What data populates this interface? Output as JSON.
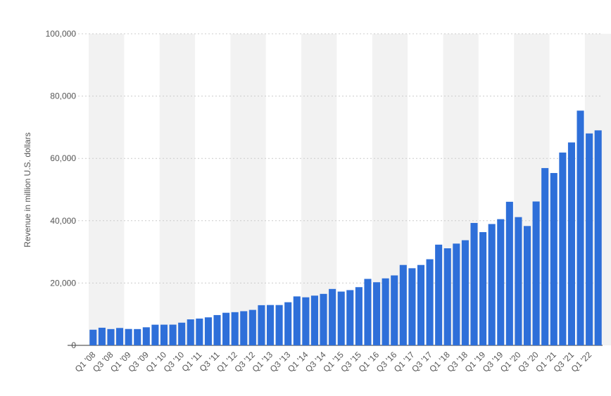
{
  "chart_data": {
    "type": "bar",
    "title": "",
    "xlabel": "",
    "ylabel": "Revenue in million U.S. dollars",
    "ylim": [
      0,
      100000
    ],
    "yticks": [
      0,
      20000,
      40000,
      60000,
      80000,
      100000
    ],
    "ytick_labels": [
      "0",
      "20,000",
      "40,000",
      "60,000",
      "80,000",
      "100,000"
    ],
    "grid": "horizontal dotted",
    "bar_color": "#2e6fd9",
    "band_color": "#f2f2f2",
    "categories": [
      "Q1 '08",
      "Q2 '08",
      "Q3 '08",
      "Q4 '08",
      "Q1 '09",
      "Q2 '09",
      "Q3 '09",
      "Q4 '09",
      "Q1 '10",
      "Q2 '10",
      "Q3 '10",
      "Q4 '10",
      "Q1 '11",
      "Q2 '11",
      "Q3 '11",
      "Q4 '11",
      "Q1 '12",
      "Q2 '12",
      "Q3 '12",
      "Q4 '12",
      "Q1 '13",
      "Q2 '13",
      "Q3 '13",
      "Q4 '13",
      "Q1 '14",
      "Q2 '14",
      "Q3 '14",
      "Q4 '14",
      "Q1 '15",
      "Q2 '15",
      "Q3 '15",
      "Q4 '15",
      "Q1 '16",
      "Q2 '16",
      "Q3 '16",
      "Q4 '16",
      "Q1 '17",
      "Q2 '17",
      "Q3 '17",
      "Q4 '17",
      "Q1 '18",
      "Q2 '18",
      "Q3 '18",
      "Q4 '18",
      "Q1 '19",
      "Q2 '19",
      "Q3 '19",
      "Q4 '19",
      "Q1 '20",
      "Q2 '20",
      "Q3 '20",
      "Q4 '20",
      "Q1 '21",
      "Q2 '21",
      "Q3 '21",
      "Q4 '21",
      "Q1 '22",
      "Q2 '22"
    ],
    "x_tick_labels": [
      "Q1 '08",
      "",
      "Q3 '08",
      "",
      "Q1 '09",
      "",
      "Q3 '09",
      "",
      "Q1 '10",
      "",
      "Q3 '10",
      "",
      "Q1 '11",
      "",
      "Q3 '11",
      "",
      "Q1 '12",
      "",
      "Q3 '12",
      "",
      "Q1 '13",
      "",
      "Q3 '13",
      "",
      "Q1 '14",
      "",
      "Q3 '14",
      "",
      "Q1 '15",
      "",
      "Q3 '15",
      "",
      "Q1 '16",
      "",
      "Q3 '16",
      "",
      "Q1 '17",
      "",
      "Q3 '17",
      "",
      "Q1 '18",
      "",
      "Q3 '18",
      "",
      "Q1 '19",
      "",
      "Q3 '19",
      "",
      "Q1 '20",
      "",
      "Q3 '20",
      "",
      "Q1 '21",
      "",
      "Q3 '21",
      "",
      "Q1 '22",
      ""
    ],
    "values": [
      5020,
      5660,
      5230,
      5580,
      5260,
      5230,
      5800,
      6630,
      6640,
      6650,
      7280,
      8340,
      8600,
      8990,
      9720,
      10460,
      10650,
      10960,
      11380,
      12890,
      12950,
      12940,
      13840,
      15710,
      15420,
      15960,
      16520,
      18100,
      17260,
      17730,
      18680,
      21330,
      20260,
      21500,
      22450,
      25800,
      24750,
      25800,
      27640,
      32320,
      31150,
      32660,
      33740,
      39280,
      36340,
      38940,
      40500,
      46080,
      41160,
      38300,
      46170,
      56900,
      55310,
      61880,
      65120,
      75330,
      68010,
      69000
    ]
  }
}
